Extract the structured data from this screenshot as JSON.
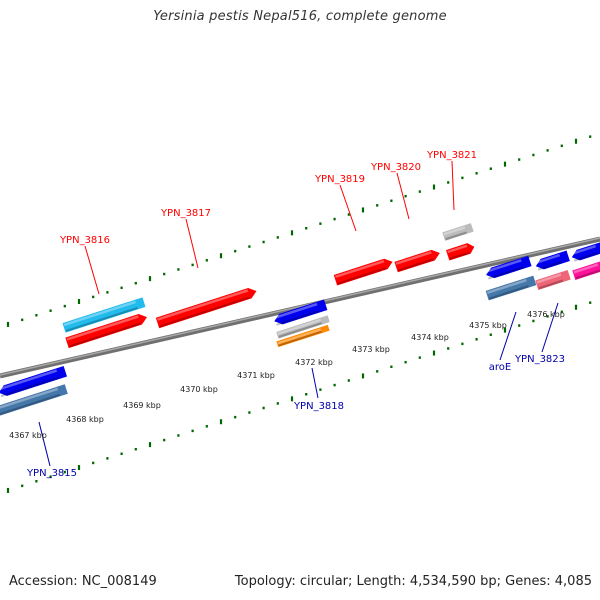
{
  "title": "Yersinia pestis Nepal516, complete genome",
  "footer": {
    "accession": "Accession: NC_008149",
    "summary": "Topology: circular; Length: 4,534,590 bp; Genes: 4,085"
  },
  "colors": {
    "upper_label": "#ff0000",
    "lower_label": "#0000aa",
    "backbone": "#808080",
    "tick": "#006600",
    "red_gene": "#ff0000",
    "blue_gene": "#0000ee",
    "cyan_gene": "#22bbee",
    "steel_gene": "#4477aa",
    "gray_gene": "#bbbbbb",
    "orange_gene": "#ff8800",
    "salmon_gene": "#ee6677",
    "magenta_gene": "#ff1199"
  },
  "scale_labels": [
    "4367 kbp",
    "4368 kbp",
    "4369 kbp",
    "4370 kbp",
    "4371 kbp",
    "4372 kbp",
    "4373 kbp",
    "4374 kbp",
    "4375 kbp",
    "4376 kbp"
  ],
  "upper_labels": [
    "YPN_3816",
    "YPN_3817",
    "YPN_3819",
    "YPN_3820",
    "YPN_3821"
  ],
  "lower_labels": [
    "YPN_3815",
    "YPN_3818",
    "aroE",
    "YPN_3823"
  ]
}
